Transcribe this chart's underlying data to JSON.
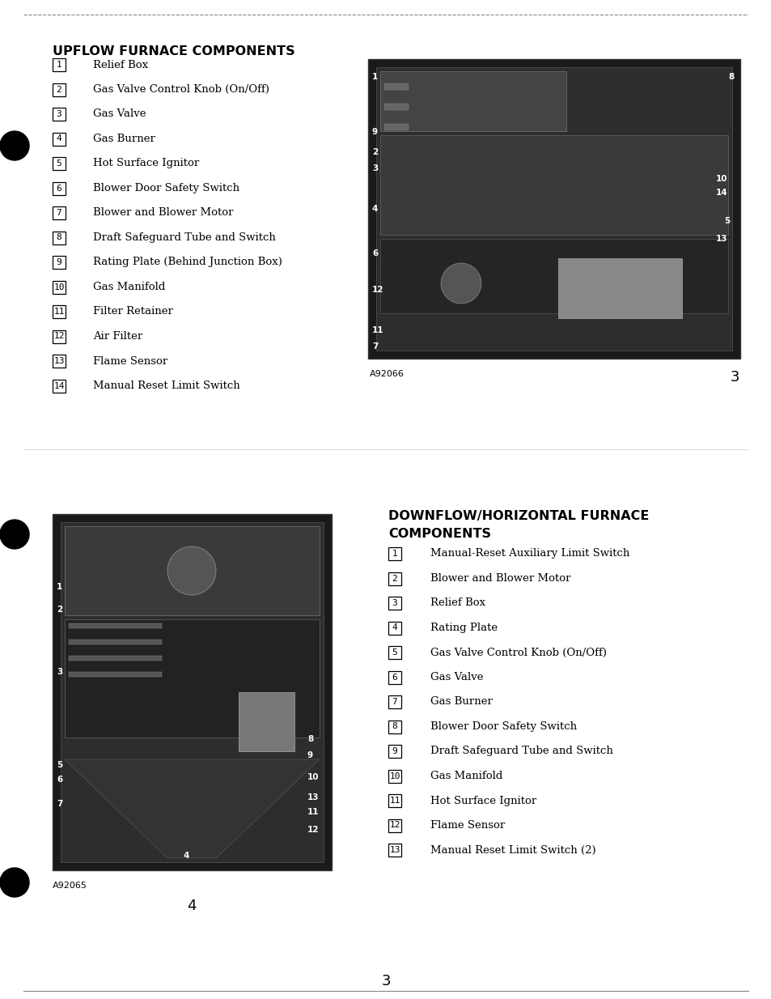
{
  "upflow_title": "UPFLOW FURNACE COMPONENTS",
  "upflow_items": [
    [
      1,
      "Relief Box"
    ],
    [
      2,
      "Gas Valve Control Knob (On/Off)"
    ],
    [
      3,
      "Gas Valve"
    ],
    [
      4,
      "Gas Burner"
    ],
    [
      5,
      "Hot Surface Ignitor"
    ],
    [
      6,
      "Blower Door Safety Switch"
    ],
    [
      7,
      "Blower and Blower Motor"
    ],
    [
      8,
      "Draft Safeguard Tube and Switch"
    ],
    [
      9,
      "Rating Plate (Behind Junction Box)"
    ],
    [
      10,
      "Gas Manifold"
    ],
    [
      11,
      "Filter Retainer"
    ],
    [
      12,
      "Air Filter"
    ],
    [
      13,
      "Flame Sensor"
    ],
    [
      14,
      "Manual Reset Limit Switch"
    ]
  ],
  "downflow_title_line1": "DOWNFLOW/HORIZONTAL FURNACE",
  "downflow_title_line2": "COMPONENTS",
  "downflow_items": [
    [
      1,
      "Manual-Reset Auxiliary Limit Switch"
    ],
    [
      2,
      "Blower and Blower Motor"
    ],
    [
      3,
      "Relief Box"
    ],
    [
      4,
      "Rating Plate"
    ],
    [
      5,
      "Gas Valve Control Knob (On/Off)"
    ],
    [
      6,
      "Gas Valve"
    ],
    [
      7,
      "Gas Burner"
    ],
    [
      8,
      "Blower Door Safety Switch"
    ],
    [
      9,
      "Draft Safeguard Tube and Switch"
    ],
    [
      10,
      "Gas Manifold"
    ],
    [
      11,
      "Hot Surface Ignitor"
    ],
    [
      12,
      "Flame Sensor"
    ],
    [
      13,
      "Manual Reset Limit Switch (2)"
    ]
  ],
  "upflow_image_caption": "A92066",
  "downflow_image_caption": "A92065",
  "page_number_top": "3",
  "page_number_bottom": "3",
  "page_number_section": "4",
  "background_color": "#ffffff",
  "text_color": "#000000",
  "title_fontsize": 11.5,
  "item_fontsize": 9.5,
  "caption_fontsize": 8,
  "page_num_fontsize": 13
}
